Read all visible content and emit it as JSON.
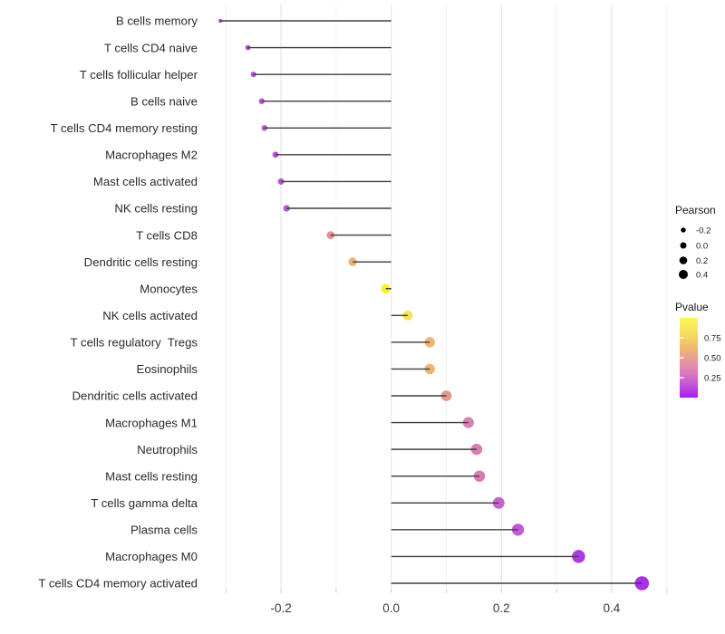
{
  "chart_data": {
    "type": "lollipop",
    "orientation": "horizontal",
    "title": "",
    "xlabel": "",
    "ylabel": "",
    "grid": "vertical-only",
    "xlim": [
      -0.345,
      0.505
    ],
    "x_major_ticks": [
      -0.2,
      0.0,
      0.2,
      0.4
    ],
    "x_major_tick_labels": [
      "-0.2",
      "0.0",
      "0.2",
      "0.4"
    ],
    "x_minor_ticks": [
      -0.3,
      -0.1,
      0.1,
      0.3,
      0.5
    ],
    "categories": [
      "B cells memory",
      "T cells CD4 naive",
      "T cells follicular helper",
      "B cells naive",
      "T cells CD4 memory resting",
      "Macrophages M2",
      "Mast cells activated",
      "NK cells resting",
      "T cells CD8",
      "Dendritic cells resting",
      "Monocytes",
      "NK cells activated",
      "T cells regulatory  Tregs",
      "Eosinophils",
      "Dendritic cells activated",
      "Macrophages M1",
      "Neutrophils",
      "Mast cells resting",
      "T cells gamma delta",
      "Plasma cells",
      "Macrophages M0",
      "T cells CD4 memory activated"
    ],
    "series": [
      {
        "name": "Pearson",
        "values": [
          -0.31,
          -0.26,
          -0.25,
          -0.235,
          -0.23,
          -0.21,
          -0.2,
          -0.19,
          -0.11,
          -0.07,
          -0.01,
          0.03,
          0.07,
          0.07,
          0.1,
          0.14,
          0.155,
          0.16,
          0.195,
          0.23,
          0.34,
          0.455
        ]
      }
    ],
    "point_colors": [
      "#A03AC2",
      "#A73CC6",
      "#A93EC7",
      "#AC42C8",
      "#AE45C8",
      "#B148C9",
      "#B34ACA",
      "#B44BCA",
      "#DC898F",
      "#EAAA67",
      "#F7F010",
      "#F3DE50",
      "#EDB166",
      "#ECAF69",
      "#E39181",
      "#D677AB",
      "#D573AB",
      "#D471AA",
      "#C256C9",
      "#BB4CD1",
      "#A52ADF",
      "#A121E3"
    ],
    "stem_color": "#3E3E3E",
    "grid_major_color": "#E6E6E6",
    "grid_minor_color": "#F1F1F1",
    "axis_tick_color": "#D6D6D6",
    "axis_text_color": "#3A3A3A",
    "category_text_color": "#2B2B2B",
    "legend_size": {
      "title": "Pearson",
      "labels": [
        "-0.2",
        "0.0",
        "0.2",
        "0.4"
      ],
      "values": [
        -0.2,
        0.0,
        0.2,
        0.4
      ],
      "dot_color": "#000000"
    },
    "legend_color": {
      "title": "Pvalue",
      "tick_labels": [
        "0.75",
        "0.50",
        "0.25"
      ],
      "tick_values": [
        0.75,
        0.5,
        0.25
      ],
      "bar_top_value": 1.0,
      "bar_bottom_value": 0.0,
      "gradient_stops": [
        {
          "pos": 0.0,
          "color": "#FBF65A"
        },
        {
          "pos": 0.2,
          "color": "#F6DE5D"
        },
        {
          "pos": 0.4,
          "color": "#EFB274"
        },
        {
          "pos": 0.55,
          "color": "#E596A0"
        },
        {
          "pos": 0.7,
          "color": "#D878C0"
        },
        {
          "pos": 0.85,
          "color": "#C44FD8"
        },
        {
          "pos": 1.0,
          "color": "#A81DEE"
        }
      ]
    }
  }
}
